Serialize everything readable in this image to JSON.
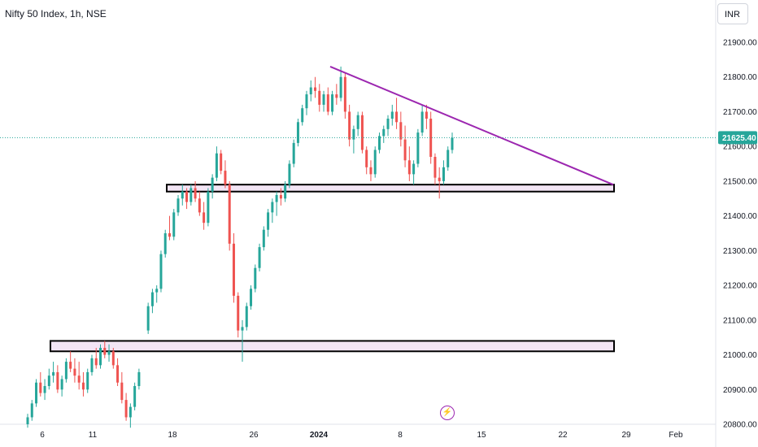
{
  "header": {
    "title": "Nifty 50 Index, 1h, NSE",
    "currency": "INR"
  },
  "colors": {
    "up": "#26a69a",
    "down": "#ef5350",
    "trendline": "#9c27b0",
    "zone_fill": "#f3e5f5",
    "zone_stroke": "#000000",
    "price_line": "#26a69a"
  },
  "icons": {
    "event": "lightning-bolt-icon"
  },
  "chart_data": {
    "type": "candlestick",
    "title": "Nifty 50 Index, 1h, NSE",
    "y_ticks": [
      "21900.00",
      "21800.00",
      "21700.00",
      "21600.00",
      "21500.00",
      "21400.00",
      "21300.00",
      "21200.00",
      "21100.00",
      "21000.00",
      "20900.00",
      "20800.00"
    ],
    "x_ticks": [
      "6",
      "11",
      "18",
      "26",
      "2024",
      "8",
      "15",
      "22",
      "29",
      "Feb"
    ],
    "last_price": "21625.40",
    "ylim": [
      20790,
      21960
    ],
    "series": [
      {
        "name": "Nifty 50 Index",
        "candles": [
          [
            20800,
            20830,
            20790,
            20820
          ],
          [
            20820,
            20870,
            20810,
            20860
          ],
          [
            20860,
            20930,
            20850,
            20920
          ],
          [
            20920,
            20950,
            20880,
            20890
          ],
          [
            20890,
            20930,
            20870,
            20910
          ],
          [
            20910,
            20960,
            20900,
            20940
          ],
          [
            20940,
            20980,
            20920,
            20950
          ],
          [
            20950,
            20970,
            20890,
            20900
          ],
          [
            20900,
            20940,
            20880,
            20930
          ],
          [
            20930,
            20990,
            20920,
            20980
          ],
          [
            20980,
            21010,
            20950,
            20960
          ],
          [
            20960,
            20990,
            20920,
            20940
          ],
          [
            20940,
            20980,
            20900,
            20920
          ],
          [
            20920,
            20950,
            20880,
            20900
          ],
          [
            20900,
            20960,
            20890,
            20950
          ],
          [
            20950,
            21000,
            20940,
            20990
          ],
          [
            20990,
            21020,
            20960,
            20970
          ],
          [
            20970,
            21030,
            20960,
            21020
          ],
          [
            21020,
            21040,
            20990,
            21000
          ],
          [
            21000,
            21030,
            20980,
            21010
          ],
          [
            21010,
            21020,
            20960,
            20970
          ],
          [
            20970,
            20990,
            20910,
            20920
          ],
          [
            20920,
            20950,
            20860,
            20870
          ],
          [
            20870,
            20890,
            20810,
            20820
          ],
          [
            20820,
            20860,
            20790,
            20850
          ],
          [
            20850,
            20920,
            20840,
            20910
          ],
          [
            20910,
            20960,
            20900,
            20950
          ],
          [
            21070,
            21150,
            21060,
            21140
          ],
          [
            21140,
            21190,
            21120,
            21180
          ],
          [
            21180,
            21200,
            21150,
            21190
          ],
          [
            21190,
            21300,
            21180,
            21290
          ],
          [
            21290,
            21360,
            21280,
            21350
          ],
          [
            21350,
            21400,
            21330,
            21340
          ],
          [
            21340,
            21420,
            21330,
            21410
          ],
          [
            21410,
            21460,
            21400,
            21450
          ],
          [
            21450,
            21490,
            21430,
            21470
          ],
          [
            21470,
            21480,
            21420,
            21440
          ],
          [
            21440,
            21490,
            21430,
            21480
          ],
          [
            21480,
            21500,
            21440,
            21450
          ],
          [
            21450,
            21470,
            21400,
            21410
          ],
          [
            21410,
            21440,
            21360,
            21380
          ],
          [
            21380,
            21480,
            21370,
            21470
          ],
          [
            21470,
            21520,
            21450,
            21510
          ],
          [
            21510,
            21600,
            21500,
            21580
          ],
          [
            21580,
            21590,
            21520,
            21530
          ],
          [
            21530,
            21560,
            21480,
            21490
          ],
          [
            21490,
            21500,
            21300,
            21320
          ],
          [
            21320,
            21350,
            21150,
            21170
          ],
          [
            21170,
            21180,
            21050,
            21070
          ],
          [
            21070,
            21100,
            20980,
            21080
          ],
          [
            21080,
            21150,
            21070,
            21140
          ],
          [
            21140,
            21200,
            21130,
            21190
          ],
          [
            21190,
            21260,
            21180,
            21250
          ],
          [
            21250,
            21320,
            21240,
            21310
          ],
          [
            21310,
            21370,
            21300,
            21360
          ],
          [
            21360,
            21420,
            21340,
            21410
          ],
          [
            21410,
            21450,
            21380,
            21440
          ],
          [
            21440,
            21470,
            21400,
            21460
          ],
          [
            21460,
            21480,
            21430,
            21450
          ],
          [
            21450,
            21500,
            21440,
            21490
          ],
          [
            21490,
            21560,
            21480,
            21550
          ],
          [
            21550,
            21620,
            21540,
            21610
          ],
          [
            21610,
            21680,
            21600,
            21670
          ],
          [
            21670,
            21720,
            21660,
            21710
          ],
          [
            21710,
            21760,
            21690,
            21750
          ],
          [
            21750,
            21790,
            21730,
            21770
          ],
          [
            21770,
            21800,
            21740,
            21760
          ],
          [
            21760,
            21780,
            21700,
            21720
          ],
          [
            21720,
            21760,
            21700,
            21750
          ],
          [
            21750,
            21770,
            21690,
            21700
          ],
          [
            21700,
            21760,
            21690,
            21750
          ],
          [
            21750,
            21780,
            21720,
            21740
          ],
          [
            21740,
            21830,
            21730,
            21800
          ],
          [
            21800,
            21810,
            21680,
            21700
          ],
          [
            21700,
            21720,
            21600,
            21620
          ],
          [
            21620,
            21660,
            21580,
            21650
          ],
          [
            21650,
            21700,
            21630,
            21690
          ],
          [
            21690,
            21700,
            21580,
            21590
          ],
          [
            21590,
            21600,
            21520,
            21540
          ],
          [
            21540,
            21560,
            21500,
            21520
          ],
          [
            21520,
            21600,
            21510,
            21590
          ],
          [
            21590,
            21640,
            21580,
            21630
          ],
          [
            21630,
            21660,
            21610,
            21650
          ],
          [
            21650,
            21690,
            21630,
            21680
          ],
          [
            21680,
            21720,
            21660,
            21700
          ],
          [
            21700,
            21740,
            21650,
            21670
          ],
          [
            21670,
            21700,
            21600,
            21620
          ],
          [
            21620,
            21660,
            21540,
            21560
          ],
          [
            21560,
            21600,
            21500,
            21520
          ],
          [
            21520,
            21560,
            21490,
            21550
          ],
          [
            21550,
            21650,
            21540,
            21640
          ],
          [
            21640,
            21720,
            21630,
            21700
          ],
          [
            21700,
            21720,
            21650,
            21680
          ],
          [
            21680,
            21700,
            21550,
            21570
          ],
          [
            21570,
            21580,
            21490,
            21510
          ],
          [
            21510,
            21540,
            21450,
            21500
          ],
          [
            21500,
            21560,
            21490,
            21540
          ],
          [
            21540,
            21600,
            21530,
            21590
          ],
          [
            21590,
            21640,
            21580,
            21625
          ]
        ]
      }
    ],
    "annotations": {
      "trendline": {
        "from": [
          "Jan 3",
          21830
        ],
        "to": [
          "Jan 26",
          21490
        ]
      },
      "zones": [
        {
          "label": "",
          "low": 21470,
          "high": 21490,
          "from": "Dec 18",
          "to": "Jan 26"
        },
        {
          "label": "",
          "low": 21010,
          "high": 21040,
          "from": "Dec 6",
          "to": "Jan 26"
        }
      ]
    }
  }
}
